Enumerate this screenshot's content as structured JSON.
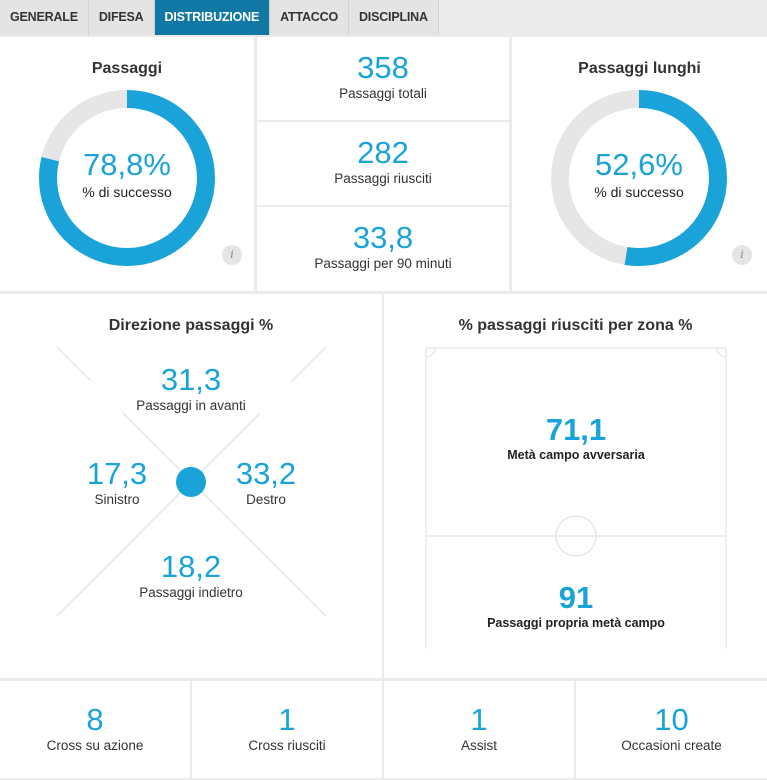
{
  "tabs": [
    {
      "label": "Generale"
    },
    {
      "label": "Difesa"
    },
    {
      "label": "Distribuzione"
    },
    {
      "label": "Attacco"
    },
    {
      "label": "Disciplina"
    }
  ],
  "passes": {
    "title": "Passaggi",
    "value": "78,8%",
    "label": "% di successo",
    "fraction": 0.788
  },
  "pass_stats": [
    {
      "value": "358",
      "label": "Passaggi totali"
    },
    {
      "value": "282",
      "label": "Passaggi riusciti"
    },
    {
      "value": "33,8",
      "label": "Passaggi per 90 minuti"
    }
  ],
  "long_passes": {
    "title": "Passaggi lunghi",
    "value": "52,6%",
    "label": "% di successo",
    "fraction": 0.526
  },
  "info_icon": "i",
  "direction": {
    "title": "Direzione passaggi %",
    "forward": {
      "value": "31,3",
      "label": "Passaggi in avanti"
    },
    "left": {
      "value": "17,3",
      "label": "Sinistro"
    },
    "right": {
      "value": "33,2",
      "label": "Destro"
    },
    "backward": {
      "value": "18,2",
      "label": "Passaggi indietro"
    }
  },
  "zones": {
    "title": "% passaggi riusciti per zona %",
    "opponent": {
      "value": "71,1",
      "label": "Metà campo avversaria"
    },
    "own": {
      "value": "91",
      "label": "Passaggi propria metà campo"
    }
  },
  "bottom_stats": [
    {
      "value": "8",
      "label": "Cross su azione"
    },
    {
      "value": "1",
      "label": "Cross riusciti"
    },
    {
      "value": "1",
      "label": "Assist"
    },
    {
      "value": "10",
      "label": "Occasioni create"
    }
  ],
  "colors": {
    "accent": "#1aa3d9",
    "track": "#e6e6e6",
    "active_tab": "#1078a3"
  }
}
